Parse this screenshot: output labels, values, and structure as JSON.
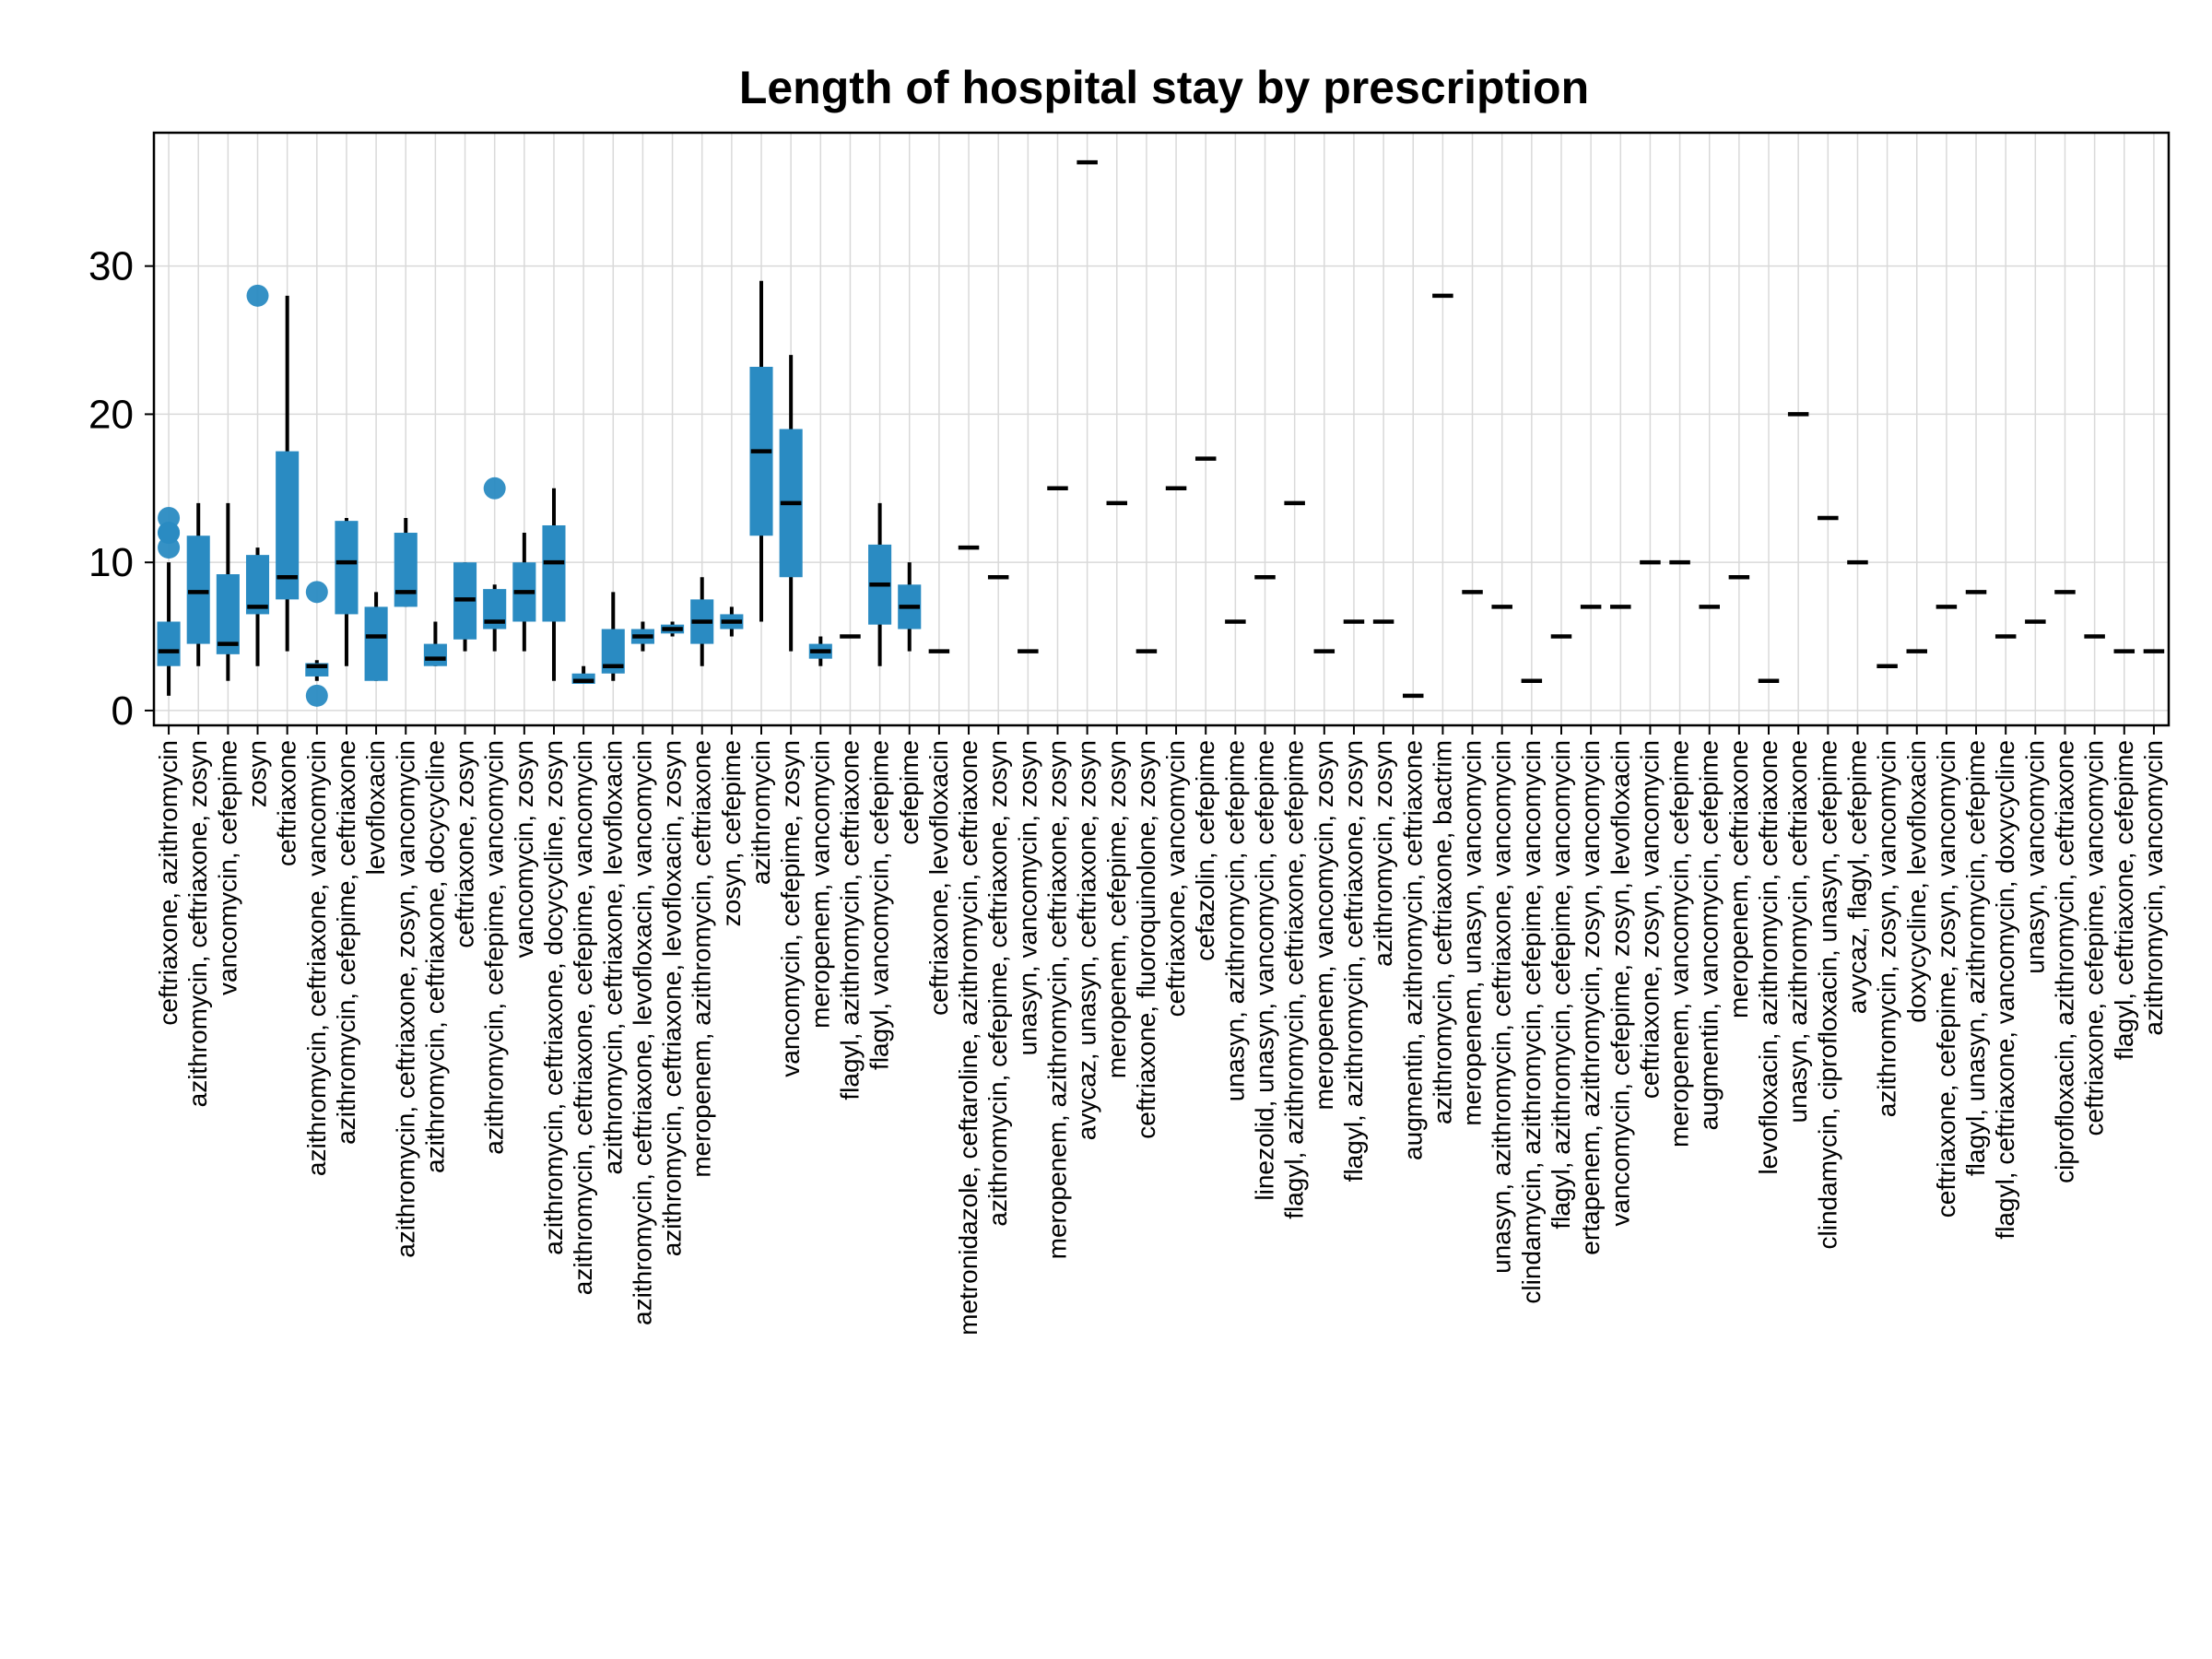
{
  "chart_data": {
    "type": "boxplot",
    "title": "Length of hospital stay by prescription",
    "xlabel": "",
    "ylabel": "",
    "ylim": [
      -1,
      39
    ],
    "yticks": [
      0,
      10,
      20,
      30
    ],
    "grid": true,
    "colors": {
      "box": "#2a8bc2",
      "median": "#000000",
      "whisker": "#000000",
      "outlier": "#2a8bc2",
      "grid": "#d9d9d9"
    },
    "categories": [
      "ceftriaxone, azithromycin",
      "azithromycin, ceftriaxone, zosyn",
      "vancomycin, cefepime",
      "zosyn",
      "ceftriaxone",
      "azithromycin, ceftriaxone, vancomycin",
      "azithromycin, cefepime, ceftriaxone",
      "levofloxacin",
      "azithromycin, ceftriaxone, zosyn, vancomycin",
      "azithromycin, ceftriaxone, docycycline",
      "ceftriaxone, zosyn",
      "azithromycin, cefepime, vancomycin",
      "vancomycin, zosyn",
      "azithromycin, ceftriaxone, docycycline, zosyn",
      "azithromycin, ceftriaxone, cefepime, vancomycin",
      "azithromycin, ceftriaxone, levofloxacin",
      "azithromycin, ceftriaxone, levofloxacin, vancomycin",
      "azithromycin, ceftriaxone, levofloxacin, zosyn",
      "meropenem, azithromycin, ceftriaxone",
      "zosyn, cefepime",
      "azithromycin",
      "vancomycin, cefepime, zosyn",
      "meropenem, vancomycin",
      "flagyl, azithromycin, ceftriaxone",
      "flagyl, vancomycin, cefepime",
      "cefepime",
      "ceftriaxone, levofloxacin",
      "metronidazole, ceftaroline, azithromycin, ceftriaxone",
      "azithromycin, cefepime, ceftriaxone, zosyn",
      "unasyn, vancomycin, zosyn",
      "meropenem, azithromycin, ceftriaxone, zosyn",
      "avycaz, unasyn, ceftriaxone, zosyn",
      "meropenem, cefepime, zosyn",
      "ceftriaxone, fluoroquinolone, zosyn",
      "ceftriaxone, vancomycin",
      "cefazolin, cefepime",
      "unasyn, azithromycin, cefepime",
      "linezolid, unasyn, vancomycin, cefepime",
      "flagyl, azithromycin, ceftriaxone, cefepime",
      "meropenem, vancomycin, zosyn",
      "flagyl, azithromycin, ceftriaxone, zosyn",
      "azithromycin, zosyn",
      "augmentin, azithromycin, ceftriaxone",
      "azithromycin, ceftriaxone, bactrim",
      "meropenem, unasyn, vancomycin",
      "unasyn, azithromycin, ceftriaxone, vancomycin",
      "clindamycin, azithromycin, cefepime, vancomycin",
      "flagyl, azithromycin, cefepime, vancomycin",
      "ertapenem, azithromycin, zosyn, vancomycin",
      "vancomycin, cefepime, zosyn, levofloxacin",
      "ceftriaxone, zosyn, vancomycin",
      "meropenem, vancomycin, cefepime",
      "augmentin, vancomycin, cefepime",
      "meropenem, ceftriaxone",
      "levofloxacin, azithromycin, ceftriaxone",
      "unasyn, azithromycin, ceftriaxone",
      "clindamycin, ciprofloxacin, unasyn, cefepime",
      "avycaz, flagyl, cefepime",
      "azithromycin, zosyn, vancomycin",
      "doxycycline, levofloxacin",
      "ceftriaxone, cefepime, zosyn, vancomycin",
      "flagyl, unasyn, azithromycin, cefepime",
      "flagyl, ceftriaxone, vancomycin, doxycycline",
      "unasyn, vancomycin",
      "ciprofloxacin, azithromycin, ceftriaxone",
      "ceftriaxone, cefepime, vancomycin",
      "flagyl, ceftriaxone, cefepime",
      "azithromycin, vancomycin"
    ],
    "boxes": [
      {
        "min": 1,
        "q1": 3,
        "median": 4,
        "q3": 6,
        "max": 10,
        "outliers": [
          11,
          12,
          12,
          13
        ]
      },
      {
        "min": 3,
        "q1": 4.5,
        "median": 8,
        "q3": 11.8,
        "max": 14,
        "outliers": []
      },
      {
        "min": 2,
        "q1": 3.8,
        "median": 4.5,
        "q3": 9.2,
        "max": 14,
        "outliers": []
      },
      {
        "min": 3,
        "q1": 6.5,
        "median": 7,
        "q3": 10.5,
        "max": 11,
        "outliers": [
          28
        ]
      },
      {
        "min": 4,
        "q1": 7.5,
        "median": 9,
        "q3": 17.5,
        "max": 28,
        "outliers": []
      },
      {
        "min": 2,
        "q1": 2.3,
        "median": 3,
        "q3": 3.2,
        "max": 3.4,
        "outliers": [
          1,
          8
        ]
      },
      {
        "min": 3,
        "q1": 6.5,
        "median": 10,
        "q3": 12.8,
        "max": 13,
        "outliers": []
      },
      {
        "min": 2,
        "q1": 2,
        "median": 5,
        "q3": 7,
        "max": 8,
        "outliers": []
      },
      {
        "min": 7,
        "q1": 7,
        "median": 8,
        "q3": 12,
        "max": 13,
        "outliers": []
      },
      {
        "min": 3,
        "q1": 3,
        "median": 3.5,
        "q3": 4.5,
        "max": 6,
        "outliers": []
      },
      {
        "min": 4,
        "q1": 4.8,
        "median": 7.5,
        "q3": 10,
        "max": 10,
        "outliers": []
      },
      {
        "min": 4,
        "q1": 5.5,
        "median": 6,
        "q3": 8.2,
        "max": 8.5,
        "outliers": [
          15
        ]
      },
      {
        "min": 4,
        "q1": 6,
        "median": 8,
        "q3": 10,
        "max": 12,
        "outliers": []
      },
      {
        "min": 2,
        "q1": 6,
        "median": 10,
        "q3": 12.5,
        "max": 15,
        "outliers": []
      },
      {
        "min": 1.8,
        "q1": 1.8,
        "median": 2,
        "q3": 2.5,
        "max": 3,
        "outliers": []
      },
      {
        "min": 2,
        "q1": 2.5,
        "median": 3,
        "q3": 5.5,
        "max": 8,
        "outliers": []
      },
      {
        "min": 4,
        "q1": 4.5,
        "median": 5,
        "q3": 5.5,
        "max": 6,
        "outliers": []
      },
      {
        "min": 5,
        "q1": 5.2,
        "median": 5.5,
        "q3": 5.8,
        "max": 6,
        "outliers": []
      },
      {
        "min": 3,
        "q1": 4.5,
        "median": 6,
        "q3": 7.5,
        "max": 9,
        "outliers": []
      },
      {
        "min": 5,
        "q1": 5.5,
        "median": 6,
        "q3": 6.5,
        "max": 7,
        "outliers": []
      },
      {
        "min": 6,
        "q1": 11.8,
        "median": 17.5,
        "q3": 23.2,
        "max": 29,
        "outliers": []
      },
      {
        "min": 4,
        "q1": 9,
        "median": 14,
        "q3": 19,
        "max": 24,
        "outliers": []
      },
      {
        "min": 3,
        "q1": 3.5,
        "median": 4,
        "q3": 4.5,
        "max": 5,
        "outliers": []
      },
      {
        "min": 5,
        "q1": 5,
        "median": 5,
        "q3": 5,
        "max": 5,
        "outliers": []
      },
      {
        "min": 3,
        "q1": 5.8,
        "median": 8.5,
        "q3": 11.2,
        "max": 14,
        "outliers": []
      },
      {
        "min": 4,
        "q1": 5.5,
        "median": 7,
        "q3": 8.5,
        "max": 10,
        "outliers": []
      },
      {
        "min": 4,
        "q1": 4,
        "median": 4,
        "q3": 4,
        "max": 4,
        "outliers": []
      },
      {
        "min": 11,
        "q1": 11,
        "median": 11,
        "q3": 11,
        "max": 11,
        "outliers": []
      },
      {
        "min": 9,
        "q1": 9,
        "median": 9,
        "q3": 9,
        "max": 9,
        "outliers": []
      },
      {
        "min": 4,
        "q1": 4,
        "median": 4,
        "q3": 4,
        "max": 4,
        "outliers": []
      },
      {
        "min": 15,
        "q1": 15,
        "median": 15,
        "q3": 15,
        "max": 15,
        "outliers": []
      },
      {
        "min": 37,
        "q1": 37,
        "median": 37,
        "q3": 37,
        "max": 37,
        "outliers": []
      },
      {
        "min": 14,
        "q1": 14,
        "median": 14,
        "q3": 14,
        "max": 14,
        "outliers": []
      },
      {
        "min": 4,
        "q1": 4,
        "median": 4,
        "q3": 4,
        "max": 4,
        "outliers": []
      },
      {
        "min": 15,
        "q1": 15,
        "median": 15,
        "q3": 15,
        "max": 15,
        "outliers": []
      },
      {
        "min": 17,
        "q1": 17,
        "median": 17,
        "q3": 17,
        "max": 17,
        "outliers": []
      },
      {
        "min": 6,
        "q1": 6,
        "median": 6,
        "q3": 6,
        "max": 6,
        "outliers": []
      },
      {
        "min": 9,
        "q1": 9,
        "median": 9,
        "q3": 9,
        "max": 9,
        "outliers": []
      },
      {
        "min": 14,
        "q1": 14,
        "median": 14,
        "q3": 14,
        "max": 14,
        "outliers": []
      },
      {
        "min": 4,
        "q1": 4,
        "median": 4,
        "q3": 4,
        "max": 4,
        "outliers": []
      },
      {
        "min": 6,
        "q1": 6,
        "median": 6,
        "q3": 6,
        "max": 6,
        "outliers": []
      },
      {
        "min": 6,
        "q1": 6,
        "median": 6,
        "q3": 6,
        "max": 6,
        "outliers": []
      },
      {
        "min": 1,
        "q1": 1,
        "median": 1,
        "q3": 1,
        "max": 1,
        "outliers": []
      },
      {
        "min": 28,
        "q1": 28,
        "median": 28,
        "q3": 28,
        "max": 28,
        "outliers": []
      },
      {
        "min": 8,
        "q1": 8,
        "median": 8,
        "q3": 8,
        "max": 8,
        "outliers": []
      },
      {
        "min": 7,
        "q1": 7,
        "median": 7,
        "q3": 7,
        "max": 7,
        "outliers": []
      },
      {
        "min": 2,
        "q1": 2,
        "median": 2,
        "q3": 2,
        "max": 2,
        "outliers": []
      },
      {
        "min": 5,
        "q1": 5,
        "median": 5,
        "q3": 5,
        "max": 5,
        "outliers": []
      },
      {
        "min": 7,
        "q1": 7,
        "median": 7,
        "q3": 7,
        "max": 7,
        "outliers": []
      },
      {
        "min": 7,
        "q1": 7,
        "median": 7,
        "q3": 7,
        "max": 7,
        "outliers": []
      },
      {
        "min": 10,
        "q1": 10,
        "median": 10,
        "q3": 10,
        "max": 10,
        "outliers": []
      },
      {
        "min": 10,
        "q1": 10,
        "median": 10,
        "q3": 10,
        "max": 10,
        "outliers": []
      },
      {
        "min": 7,
        "q1": 7,
        "median": 7,
        "q3": 7,
        "max": 7,
        "outliers": []
      },
      {
        "min": 9,
        "q1": 9,
        "median": 9,
        "q3": 9,
        "max": 9,
        "outliers": []
      },
      {
        "min": 2,
        "q1": 2,
        "median": 2,
        "q3": 2,
        "max": 2,
        "outliers": []
      },
      {
        "min": 20,
        "q1": 20,
        "median": 20,
        "q3": 20,
        "max": 20,
        "outliers": []
      },
      {
        "min": 13,
        "q1": 13,
        "median": 13,
        "q3": 13,
        "max": 13,
        "outliers": []
      },
      {
        "min": 10,
        "q1": 10,
        "median": 10,
        "q3": 10,
        "max": 10,
        "outliers": []
      },
      {
        "min": 3,
        "q1": 3,
        "median": 3,
        "q3": 3,
        "max": 3,
        "outliers": []
      },
      {
        "min": 4,
        "q1": 4,
        "median": 4,
        "q3": 4,
        "max": 4,
        "outliers": []
      },
      {
        "min": 7,
        "q1": 7,
        "median": 7,
        "q3": 7,
        "max": 7,
        "outliers": []
      },
      {
        "min": 8,
        "q1": 8,
        "median": 8,
        "q3": 8,
        "max": 8,
        "outliers": []
      },
      {
        "min": 5,
        "q1": 5,
        "median": 5,
        "q3": 5,
        "max": 5,
        "outliers": []
      },
      {
        "min": 6,
        "q1": 6,
        "median": 6,
        "q3": 6,
        "max": 6,
        "outliers": []
      },
      {
        "min": 8,
        "q1": 8,
        "median": 8,
        "q3": 8,
        "max": 8,
        "outliers": []
      },
      {
        "min": 5,
        "q1": 5,
        "median": 5,
        "q3": 5,
        "max": 5,
        "outliers": []
      },
      {
        "min": 4,
        "q1": 4,
        "median": 4,
        "q3": 4,
        "max": 4,
        "outliers": []
      },
      {
        "min": 4,
        "q1": 4,
        "median": 4,
        "q3": 4,
        "max": 4,
        "outliers": []
      }
    ]
  }
}
